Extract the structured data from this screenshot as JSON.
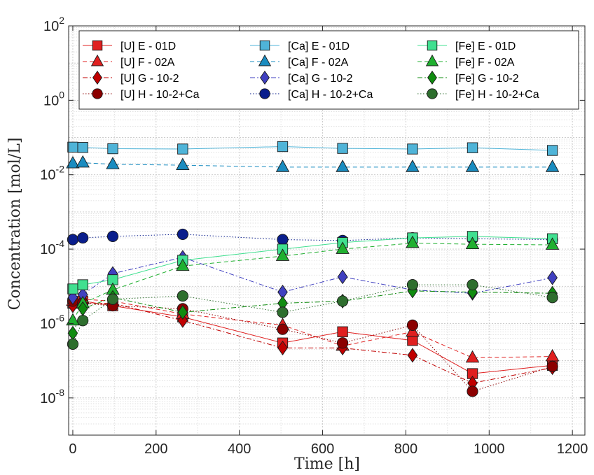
{
  "chart_data": {
    "type": "line",
    "title": "",
    "xlabel": "Time [h]",
    "ylabel": "Concentration [mol/L]",
    "xlim": [
      -10,
      1230
    ],
    "ylim": [
      1e-09,
      100
    ],
    "yscale": "log",
    "grid": "on",
    "legend_position": "top",
    "x_ticks": [
      0,
      200,
      400,
      600,
      800,
      1000,
      1200
    ],
    "x_tick_labels": [
      "0",
      "200",
      "400",
      "600",
      "800",
      "1000",
      "1200"
    ],
    "y_tick_values": [
      1e-08,
      1e-06,
      0.0001,
      0.01,
      1,
      100
    ],
    "y_tick_labels": [
      {
        "base": "10",
        "exp": "-8"
      },
      {
        "base": "10",
        "exp": "-6"
      },
      {
        "base": "10",
        "exp": "-4"
      },
      {
        "base": "10",
        "exp": "-2"
      },
      {
        "base": "10",
        "exp": "0"
      },
      {
        "base": "10",
        "exp": "2"
      }
    ],
    "series": [
      {
        "name": "[U] E - 01D",
        "color": "#E02020",
        "dash": "solid",
        "marker": "square",
        "x": [
          0,
          24,
          96,
          264,
          504,
          648,
          816,
          960,
          1152
        ],
        "y": [
          3.5e-06,
          4e-06,
          3e-06,
          1.5e-06,
          3e-07,
          6e-07,
          3.5e-07,
          4.5e-08,
          7.5e-08
        ]
      },
      {
        "name": "[U] F - 02A",
        "color": "#E02020",
        "dash": "dash",
        "marker": "triangle",
        "x": [
          0,
          24,
          96,
          264,
          504,
          648,
          816,
          960,
          1152
        ],
        "y": [
          4e-06,
          4.5e-06,
          4e-06,
          1.8e-06,
          9e-07,
          2.5e-07,
          6e-07,
          1.2e-07,
          1.3e-07
        ]
      },
      {
        "name": "[U] G - 10-2",
        "color": "#C00000",
        "dash": "dashdot",
        "marker": "diamond",
        "x": [
          0,
          24,
          96,
          264,
          504,
          648,
          816,
          960,
          1152
        ],
        "y": [
          3e-06,
          3.5e-06,
          3.5e-06,
          1.2e-06,
          2.2e-07,
          2.2e-07,
          1.4e-07,
          2.5e-08,
          6.5e-08
        ]
      },
      {
        "name": "[U] H - 10-2+Ca",
        "color": "#8B0000",
        "dash": "dot",
        "marker": "circle",
        "x": [
          0,
          24,
          96,
          264,
          504,
          648,
          816,
          960,
          1152
        ],
        "y": [
          4e-06,
          3.5e-06,
          3e-06,
          2.5e-06,
          7e-07,
          3e-07,
          9e-07,
          1.5e-08,
          7e-08
        ]
      },
      {
        "name": "[Ca] E - 01D",
        "color": "#4FB4D8",
        "dash": "solid",
        "marker": "square",
        "x": [
          0,
          24,
          96,
          264,
          504,
          648,
          816,
          960,
          1152
        ],
        "y": [
          0.055,
          0.054,
          0.05,
          0.049,
          0.057,
          0.051,
          0.049,
          0.053,
          0.045
        ]
      },
      {
        "name": "[Ca] F - 02A",
        "color": "#1A8CC0",
        "dash": "dash",
        "marker": "triangle",
        "x": [
          0,
          24,
          96,
          264,
          504,
          648,
          816,
          960,
          1152
        ],
        "y": [
          0.02,
          0.021,
          0.019,
          0.018,
          0.016,
          0.016,
          0.016,
          0.016,
          0.016
        ]
      },
      {
        "name": "[Ca] G - 10-2",
        "color": "#4040C0",
        "dash": "dashdot",
        "marker": "diamond",
        "x": [
          0,
          24,
          96,
          264,
          504,
          648,
          816,
          960,
          1152
        ],
        "y": [
          5e-06,
          6e-06,
          2.2e-05,
          6e-05,
          7e-06,
          1.8e-05,
          8e-06,
          6.5e-06,
          1.7e-05
        ]
      },
      {
        "name": "[Ca] H - 10-2+Ca",
        "color": "#0A1E8C",
        "dash": "dot",
        "marker": "circle",
        "x": [
          0,
          24,
          96,
          264,
          504,
          648,
          816,
          960,
          1152
        ],
        "y": [
          0.00018,
          0.0002,
          0.00022,
          0.00025,
          0.00018,
          0.00017,
          0.0002,
          0.00019,
          0.00018
        ]
      },
      {
        "name": "[Fe] E - 01D",
        "color": "#40E090",
        "dash": "solid",
        "marker": "square",
        "x": [
          0,
          24,
          96,
          264,
          504,
          648,
          816,
          960,
          1152
        ],
        "y": [
          8.5e-06,
          1.1e-05,
          1.5e-05,
          5e-05,
          0.0001,
          0.00015,
          0.0002,
          0.00022,
          0.00019
        ]
      },
      {
        "name": "[Fe] F - 02A",
        "color": "#20B030",
        "dash": "dash",
        "marker": "triangle",
        "x": [
          0,
          24,
          96,
          264,
          504,
          648,
          816,
          960,
          1152
        ],
        "y": [
          1.2e-06,
          3.5e-06,
          8e-06,
          3.5e-05,
          6.5e-05,
          0.0001,
          0.000145,
          0.000135,
          0.00013
        ]
      },
      {
        "name": "[Fe] G - 10-2",
        "color": "#108C10",
        "dash": "dashdot",
        "marker": "diamond",
        "x": [
          0,
          24,
          96,
          264,
          504,
          648,
          816,
          960,
          1152
        ],
        "y": [
          5.5e-07,
          2.5e-06,
          5e-06,
          2e-06,
          3.5e-06,
          4e-06,
          7.5e-06,
          7e-06,
          6.5e-06
        ]
      },
      {
        "name": "[Fe] H - 10-2+Ca",
        "color": "#2E6E2E",
        "dash": "dot",
        "marker": "circle",
        "x": [
          0,
          24,
          96,
          264,
          504,
          648,
          816,
          960,
          1152
        ],
        "y": [
          2.8e-07,
          1.2e-06,
          4.5e-06,
          5.5e-06,
          2e-06,
          4e-06,
          1.1e-05,
          1.1e-05,
          5e-06
        ]
      }
    ]
  }
}
